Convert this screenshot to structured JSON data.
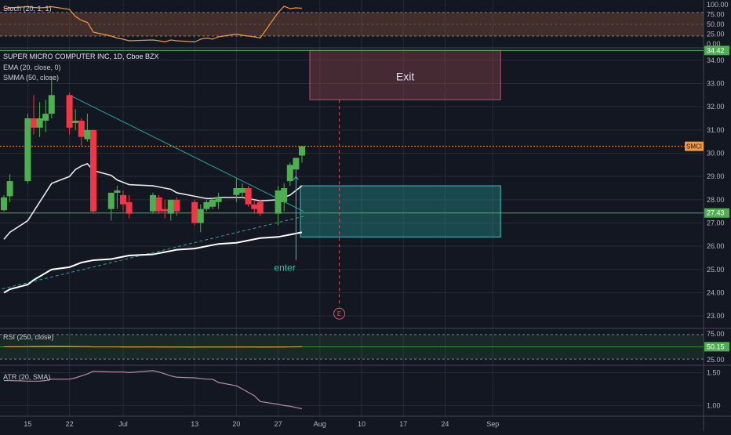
{
  "chart_data": [
    {
      "type": "line",
      "panel": "stoch",
      "title": "Stoch (20, 1, 1)",
      "ylim": [
        0,
        100
      ],
      "yticks": [
        "100.00",
        "75.00",
        "50.00",
        "25.00",
        "0.00"
      ],
      "band": [
        20,
        80
      ],
      "series": [
        {
          "color": "#f29a3d",
          "x": [
            "2020-06-11",
            "2020-06-12",
            "2020-06-15",
            "2020-06-16",
            "2020-06-17",
            "2020-06-18",
            "2020-06-19",
            "2020-06-22",
            "2020-06-23",
            "2020-06-24",
            "2020-06-25",
            "2020-06-26",
            "2020-06-29",
            "2020-06-30",
            "2020-07-01",
            "2020-07-02",
            "2020-07-06",
            "2020-07-07",
            "2020-07-08",
            "2020-07-09",
            "2020-07-10",
            "2020-07-13",
            "2020-07-14",
            "2020-07-15",
            "2020-07-16",
            "2020-07-17",
            "2020-07-20",
            "2020-07-21",
            "2020-07-22",
            "2020-07-23",
            "2020-07-24",
            "2020-07-27",
            "2020-07-28",
            "2020-07-29",
            "2020-07-30",
            "2020-07-31"
          ],
          "values": [
            90,
            92,
            95,
            93,
            92,
            93,
            95,
            88,
            70,
            60,
            55,
            30,
            20,
            15,
            12,
            8,
            10,
            8,
            5,
            10,
            8,
            5,
            12,
            15,
            12,
            18,
            25,
            22,
            20,
            18,
            15,
            80,
            96,
            90,
            92,
            91
          ]
        }
      ]
    },
    {
      "type": "candlestick",
      "panel": "price",
      "title": "SUPER MICRO COMPUTER INC, 1D, Cboe BZX",
      "legend": [
        "EMA (20, close, 0)",
        "SMMA (50, close)"
      ],
      "ylim": [
        22.5,
        34.5
      ],
      "yticks": [
        "34.00",
        "33.00",
        "32.00",
        "31.00",
        "30.00",
        "29.00",
        "28.00",
        "27.00",
        "26.00",
        "25.00",
        "24.00",
        "23.00"
      ],
      "x_tick_labels": [
        "15",
        "22",
        "Jul",
        "13",
        "20",
        "27",
        "Aug",
        "10",
        "17",
        "24",
        "Sep"
      ],
      "x": [
        "2020-06-11",
        "2020-06-12",
        "2020-06-15",
        "2020-06-16",
        "2020-06-17",
        "2020-06-18",
        "2020-06-19",
        "2020-06-22",
        "2020-06-23",
        "2020-06-24",
        "2020-06-25",
        "2020-06-26",
        "2020-06-29",
        "2020-06-30",
        "2020-07-01",
        "2020-07-02",
        "2020-07-06",
        "2020-07-07",
        "2020-07-08",
        "2020-07-09",
        "2020-07-10",
        "2020-07-13",
        "2020-07-14",
        "2020-07-15",
        "2020-07-16",
        "2020-07-17",
        "2020-07-20",
        "2020-07-21",
        "2020-07-22",
        "2020-07-23",
        "2020-07-24",
        "2020-07-27",
        "2020-07-28",
        "2020-07-29",
        "2020-07-30",
        "2020-07-31"
      ],
      "ohlc": [
        [
          27.55,
          28.2,
          27.5,
          28.1
        ],
        [
          28.15,
          29.1,
          27.9,
          28.8
        ],
        [
          28.8,
          31.7,
          28.7,
          31.5
        ],
        [
          31.5,
          32.5,
          30.8,
          31.1
        ],
        [
          31.1,
          32.2,
          30.7,
          31.5
        ],
        [
          31.4,
          32.3,
          30.9,
          31.7
        ],
        [
          31.7,
          33.3,
          31.5,
          32.5
        ],
        [
          32.5,
          32.6,
          30.8,
          31.1
        ],
        [
          31.3,
          31.9,
          31.0,
          31.4
        ],
        [
          31.4,
          31.5,
          30.3,
          30.7
        ],
        [
          30.6,
          31.7,
          30.5,
          31.0
        ],
        [
          31.0,
          31.0,
          27.4,
          27.5
        ],
        [
          27.6,
          28.3,
          27.1,
          28.3
        ],
        [
          28.3,
          28.6,
          27.6,
          28.4
        ],
        [
          28.2,
          28.4,
          27.5,
          27.8
        ],
        [
          27.9,
          28.2,
          27.2,
          27.4
        ],
        [
          27.5,
          28.3,
          27.4,
          28.2
        ],
        [
          28.1,
          28.2,
          27.4,
          27.5
        ],
        [
          27.6,
          28.0,
          27.2,
          27.5
        ],
        [
          27.4,
          28.0,
          27.1,
          28.0
        ],
        [
          28.0,
          28.1,
          27.3,
          27.5
        ],
        [
          27.9,
          28.0,
          26.9,
          27.0
        ],
        [
          27.0,
          27.8,
          26.6,
          27.6
        ],
        [
          27.6,
          28.0,
          27.5,
          27.9
        ],
        [
          27.7,
          28.1,
          27.6,
          28.0
        ],
        [
          27.9,
          28.3,
          27.6,
          28.1
        ],
        [
          28.2,
          28.9,
          27.9,
          28.5
        ],
        [
          28.3,
          28.7,
          28.1,
          28.5
        ],
        [
          28.5,
          28.6,
          27.7,
          27.8
        ],
        [
          27.8,
          28.0,
          27.4,
          27.6
        ],
        [
          27.9,
          28.0,
          27.3,
          27.4
        ],
        [
          27.4,
          28.6,
          26.9,
          28.4
        ],
        [
          27.9,
          28.7,
          27.5,
          28.5
        ],
        [
          28.8,
          29.6,
          28.6,
          29.5
        ],
        [
          29.3,
          29.8,
          29.0,
          29.8
        ],
        [
          29.9,
          30.3,
          29.6,
          30.3
        ]
      ],
      "series": [
        {
          "name": "EMA (20, close, 0)",
          "color": "#e8e8e8",
          "values": [
            26.3,
            26.6,
            27.1,
            27.5,
            27.9,
            28.3,
            28.7,
            29.0,
            29.3,
            29.45,
            29.55,
            29.25,
            29.05,
            28.85,
            28.75,
            28.65,
            28.6,
            28.55,
            28.5,
            28.45,
            28.3,
            28.15,
            28.1,
            28.05,
            28.05,
            28.1,
            28.1,
            28.1,
            28.05,
            28.0,
            27.95,
            28.0,
            28.1,
            28.2,
            28.4,
            28.6
          ]
        },
        {
          "name": "SMMA (50, close)",
          "color": "#ffffff",
          "values": [
            24.0,
            24.15,
            24.35,
            24.55,
            24.7,
            24.85,
            25.0,
            25.1,
            25.2,
            25.3,
            25.35,
            25.4,
            25.45,
            25.5,
            25.55,
            25.6,
            25.65,
            25.7,
            25.75,
            25.8,
            25.85,
            25.9,
            25.95,
            26.0,
            26.05,
            26.1,
            26.15,
            26.2,
            26.25,
            26.3,
            26.35,
            26.4,
            26.45,
            26.5,
            26.55,
            26.6
          ]
        }
      ],
      "drawings": {
        "downtrend_line": {
          "from": [
            "2020-06-22",
            32.5
          ],
          "to": [
            "2020-07-31",
            27.5
          ],
          "color": "#26a69a"
        },
        "uptrend_line": {
          "from": [
            "2020-06-08",
            24.0
          ],
          "to": [
            "2020-07-31",
            27.3
          ],
          "color": "#26a69a",
          "style": "dashed"
        },
        "support_line": {
          "y": 27.43,
          "color": "#4caf50"
        },
        "resistance_line": {
          "y": 34.42,
          "color": "#4caf50"
        },
        "last_price_line": {
          "y": 30.3,
          "color": "#f29a3d",
          "style": "dotted"
        },
        "exit_zone": {
          "x": [
            "2020-07-31",
            "2020-09-01"
          ],
          "y": [
            32.3,
            34.42
          ],
          "label": "Exit"
        },
        "entry_zone": {
          "x": [
            "2020-07-31",
            "2020-09-01"
          ],
          "y": [
            26.4,
            28.6
          ],
          "label": ""
        },
        "entry_arrow": {
          "x": "2020-07-30",
          "from": 25.4,
          "to": 29.0,
          "label": "enter"
        },
        "earnings_marker": {
          "x": "2020-08-06",
          "y": 23.1,
          "label": "E"
        }
      },
      "price_labels": {
        "current": "SMCI",
        "support": "27.43",
        "resistance": "34.42"
      }
    },
    {
      "type": "line",
      "panel": "rsi",
      "title": "RSI (250, close)",
      "ylim": [
        25,
        75
      ],
      "yticks": [
        "75.00",
        "25.00"
      ],
      "current_label": "50.15",
      "series": [
        {
          "color": "#d4a02c",
          "values": [
            50.1,
            50.2,
            50.4,
            50.6,
            50.5,
            50.6,
            50.8,
            50.6,
            50.5,
            50.4,
            50.3,
            49.9,
            49.9,
            49.9,
            49.8,
            49.7,
            49.8,
            49.7,
            49.7,
            49.7,
            49.6,
            49.5,
            49.6,
            49.6,
            49.6,
            49.6,
            49.7,
            49.7,
            49.6,
            49.6,
            49.5,
            49.7,
            49.7,
            49.9,
            50.0,
            50.15
          ]
        }
      ]
    },
    {
      "type": "line",
      "panel": "atr",
      "title": "ATR (20, SMA)",
      "ylim": [
        0.85,
        1.6
      ],
      "yticks": [
        "1.50",
        "1.00"
      ],
      "series": [
        {
          "color": "#b48ca8",
          "values": [
            1.38,
            1.38,
            1.37,
            1.37,
            1.37,
            1.38,
            1.4,
            1.4,
            1.42,
            1.45,
            1.48,
            1.52,
            1.51,
            1.51,
            1.51,
            1.5,
            1.53,
            1.51,
            1.48,
            1.45,
            1.43,
            1.42,
            1.41,
            1.4,
            1.4,
            1.35,
            1.3,
            1.25,
            1.2,
            1.15,
            1.06,
            1.02,
            1.0,
            0.99,
            0.97,
            0.95
          ]
        }
      ]
    }
  ]
}
